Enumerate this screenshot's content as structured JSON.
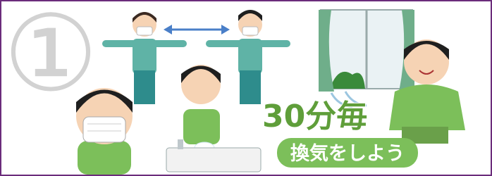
{
  "badge": "①",
  "caption": {
    "interval": "30分毎",
    "action": "換気をしよう"
  }
}
